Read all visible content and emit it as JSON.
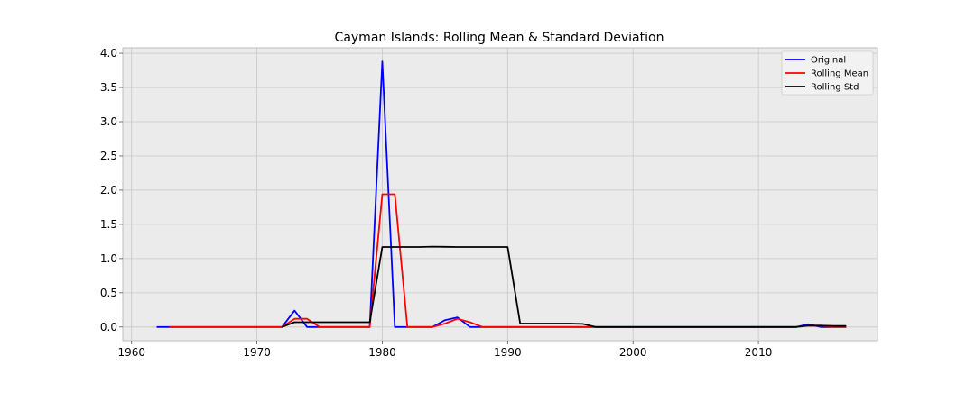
{
  "chart_data": {
    "type": "line",
    "title": "Cayman Islands: Rolling Mean & Standard Deviation",
    "xlabel": "",
    "ylabel": "",
    "xlim": [
      1959.3,
      2019.5
    ],
    "ylim": [
      -0.2,
      4.08
    ],
    "x_ticks": [
      1960,
      1970,
      1980,
      1990,
      2000,
      2010
    ],
    "y_ticks": [
      0.0,
      0.5,
      1.0,
      1.5,
      2.0,
      2.5,
      3.0,
      3.5,
      4.0
    ],
    "y_tick_labels": [
      "0.0",
      "0.5",
      "1.0",
      "1.5",
      "2.0",
      "2.5",
      "3.0",
      "3.5",
      "4.0"
    ],
    "grid": true,
    "legend_position": "top-right",
    "colors": {
      "background": "#ebebeb",
      "grid": "#c8c8c8",
      "frame": "#bdbdbd"
    },
    "series": [
      {
        "name": "Original",
        "color": "#0000ff",
        "x": [
          1962,
          1963,
          1964,
          1965,
          1966,
          1967,
          1968,
          1969,
          1970,
          1971,
          1972,
          1973,
          1974,
          1975,
          1976,
          1977,
          1978,
          1979,
          1980,
          1981,
          1982,
          1983,
          1984,
          1985,
          1986,
          1987,
          1988,
          1989,
          1990,
          1991,
          1992,
          1993,
          1994,
          1995,
          1996,
          1997,
          1998,
          1999,
          2000,
          2001,
          2002,
          2003,
          2004,
          2005,
          2006,
          2007,
          2008,
          2009,
          2010,
          2011,
          2012,
          2013,
          2014,
          2015,
          2016,
          2017
        ],
        "values": [
          0,
          0,
          0,
          0,
          0,
          0,
          0,
          0,
          0,
          0,
          0,
          0.24,
          0,
          0,
          0,
          0,
          0,
          0,
          3.88,
          0,
          0,
          0,
          0,
          0.1,
          0.14,
          0,
          0,
          0,
          0,
          0,
          0,
          0,
          0,
          0,
          0,
          0,
          0,
          0,
          0,
          0,
          0,
          0,
          0,
          0,
          0,
          0,
          0,
          0,
          0,
          0,
          0,
          0,
          0.04,
          0,
          0,
          0
        ]
      },
      {
        "name": "Rolling Mean",
        "color": "#ff0000",
        "x": [
          1963,
          1964,
          1965,
          1966,
          1967,
          1968,
          1969,
          1970,
          1971,
          1972,
          1973,
          1974,
          1975,
          1976,
          1977,
          1978,
          1979,
          1980,
          1981,
          1982,
          1983,
          1984,
          1985,
          1986,
          1987,
          1988,
          1989,
          1990,
          1991,
          1992,
          1993,
          1994,
          1995,
          1996,
          1997,
          1998,
          1999,
          2000,
          2001,
          2002,
          2003,
          2004,
          2005,
          2006,
          2007,
          2008,
          2009,
          2010,
          2011,
          2012,
          2013,
          2014,
          2015,
          2016,
          2017
        ],
        "values": [
          0,
          0,
          0,
          0,
          0,
          0,
          0,
          0,
          0,
          0,
          0.12,
          0.12,
          0,
          0,
          0,
          0,
          0,
          1.94,
          1.94,
          0,
          0,
          0,
          0.05,
          0.12,
          0.07,
          0,
          0,
          0,
          0,
          0,
          0,
          0,
          0,
          0,
          0,
          0,
          0,
          0,
          0,
          0,
          0,
          0,
          0,
          0,
          0,
          0,
          0,
          0,
          0,
          0,
          0,
          0.02,
          0.02,
          0,
          0
        ]
      },
      {
        "name": "Rolling Std",
        "color": "#000000",
        "x": [
          1972,
          1973,
          1974,
          1975,
          1976,
          1977,
          1978,
          1979,
          1980,
          1981,
          1982,
          1983,
          1984,
          1985,
          1986,
          1987,
          1988,
          1989,
          1990,
          1991,
          1992,
          1993,
          1994,
          1995,
          1996,
          1997,
          1998,
          1999,
          2000,
          2001,
          2002,
          2003,
          2004,
          2005,
          2006,
          2007,
          2008,
          2009,
          2010,
          2011,
          2012,
          2013,
          2014,
          2015,
          2016,
          2017
        ],
        "values": [
          0,
          0.07,
          0.07,
          0.07,
          0.07,
          0.07,
          0.07,
          0.07,
          1.17,
          1.17,
          1.17,
          1.17,
          1.175,
          1.172,
          1.17,
          1.17,
          1.17,
          1.17,
          1.17,
          0.05,
          0.05,
          0.05,
          0.05,
          0.05,
          0.045,
          0,
          0,
          0,
          0,
          0,
          0,
          0,
          0,
          0,
          0,
          0,
          0,
          0,
          0,
          0,
          0,
          0,
          0.02,
          0.02,
          0.015,
          0.015
        ]
      }
    ]
  }
}
